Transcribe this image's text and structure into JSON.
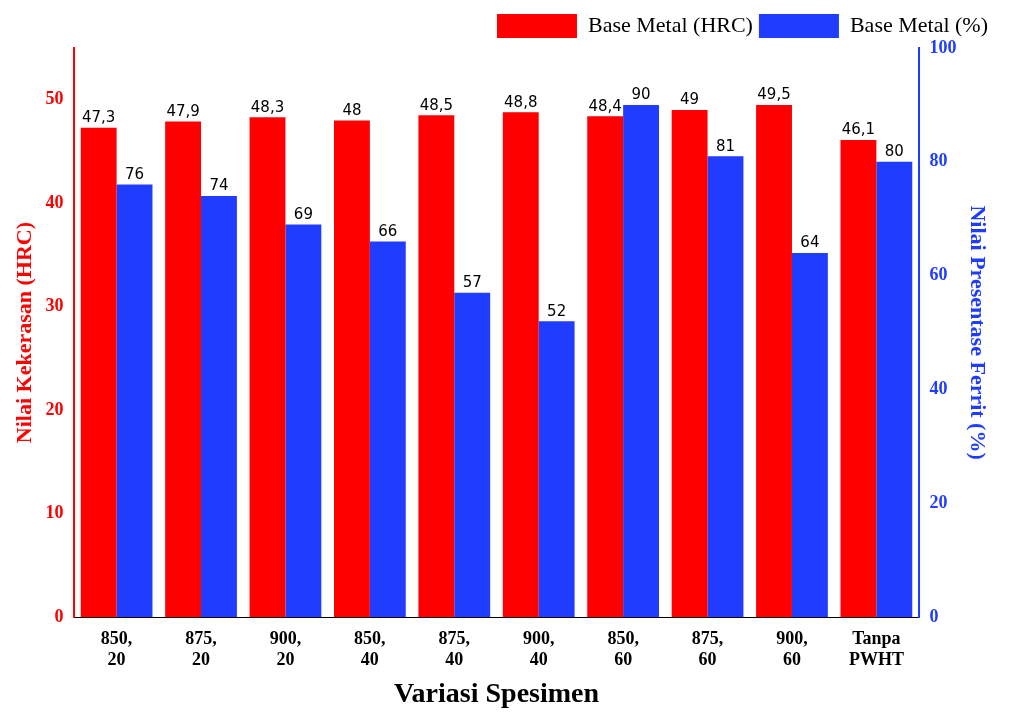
{
  "chart_data": {
    "type": "bar",
    "xlabel": "Variasi Spesimen",
    "ylabel": "Nilai Kekerasan (HRC)",
    "y2label": "Nilai Presentase Ferrit (%)",
    "categories": [
      "850, 20",
      "875, 20",
      "900, 20",
      "850, 40",
      "875, 40",
      "900, 40",
      "850, 60",
      "875, 60",
      "900, 60",
      "Tanpa PWHT"
    ],
    "series": [
      {
        "name": "Base Metal (HRC)",
        "color": "#ff0000",
        "values": [
          47.3,
          47.9,
          48.3,
          48,
          48.5,
          48.8,
          48.4,
          49,
          49.5,
          46.1
        ],
        "value_labels": [
          "47,3",
          "47,9",
          "48,3",
          "48",
          "48,5",
          "48,8",
          "48,4",
          "49",
          "49,5",
          "46,1"
        ]
      },
      {
        "name": "Base Metal (%)",
        "color": "#1f3cff",
        "axis": "y2",
        "values": [
          76,
          74,
          69,
          66,
          57,
          52,
          90,
          81,
          64,
          80
        ]
      }
    ],
    "ylim": [
      0,
      55
    ],
    "yticks": [
      0,
      10,
      20,
      30,
      40,
      50
    ],
    "y2lim": [
      0,
      100
    ],
    "y2ticks": [
      0,
      20,
      40,
      60,
      80,
      100
    ],
    "data_labels": true,
    "legend": "top right",
    "grid": false
  }
}
